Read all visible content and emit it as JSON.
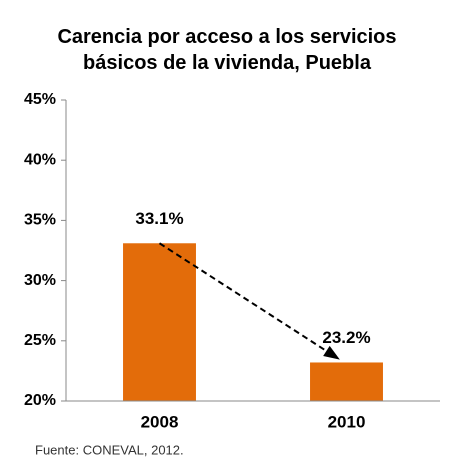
{
  "chart_data": {
    "type": "bar",
    "title": "Carencia por acceso a los servicios básicos de la vivienda, Puebla",
    "categories": [
      "2008",
      "2010"
    ],
    "values": [
      33.1,
      23.2
    ],
    "value_labels": [
      "33.1%",
      "23.2%"
    ],
    "color": "#e36c0a",
    "ylim": [
      20,
      45
    ],
    "yticks": [
      {
        "value": 20,
        "label": "20%"
      },
      {
        "value": 25,
        "label": "25%"
      },
      {
        "value": 30,
        "label": "30%"
      },
      {
        "value": 35,
        "label": "35%"
      },
      {
        "value": 40,
        "label": "40%"
      },
      {
        "value": 45,
        "label": "45%"
      }
    ],
    "note": "Fuente: CONEVAL, 2012."
  }
}
